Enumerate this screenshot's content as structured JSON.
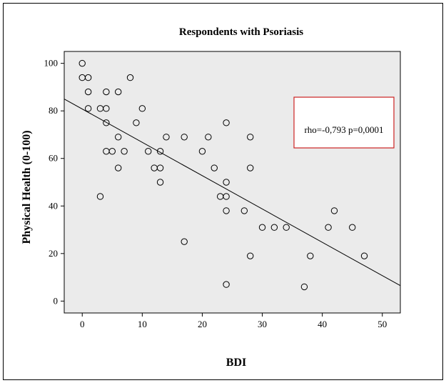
{
  "chart_data": {
    "type": "scatter",
    "title": "Respondents with Psoriasis",
    "xlabel": "BDI",
    "ylabel": "Physical Health (0-100)",
    "xlim": [
      -3,
      53
    ],
    "ylim": [
      -5,
      105
    ],
    "x_ticks": [
      0,
      10,
      20,
      30,
      40,
      50
    ],
    "y_ticks": [
      0,
      20,
      40,
      60,
      80,
      100
    ],
    "grid": false,
    "plot_background": "#ebebeb",
    "point_color": "#000000",
    "points": [
      {
        "x": 0,
        "y": 100
      },
      {
        "x": 0,
        "y": 94
      },
      {
        "x": 1,
        "y": 94
      },
      {
        "x": 1,
        "y": 88
      },
      {
        "x": 1,
        "y": 81
      },
      {
        "x": 3,
        "y": 81
      },
      {
        "x": 4,
        "y": 88
      },
      {
        "x": 4,
        "y": 81
      },
      {
        "x": 4,
        "y": 75
      },
      {
        "x": 4,
        "y": 63
      },
      {
        "x": 5,
        "y": 63
      },
      {
        "x": 3,
        "y": 44
      },
      {
        "x": 6,
        "y": 88
      },
      {
        "x": 6,
        "y": 69
      },
      {
        "x": 6,
        "y": 56
      },
      {
        "x": 7,
        "y": 63
      },
      {
        "x": 8,
        "y": 94
      },
      {
        "x": 9,
        "y": 75
      },
      {
        "x": 10,
        "y": 81
      },
      {
        "x": 11,
        "y": 63
      },
      {
        "x": 12,
        "y": 56
      },
      {
        "x": 13,
        "y": 63
      },
      {
        "x": 13,
        "y": 56
      },
      {
        "x": 13,
        "y": 50
      },
      {
        "x": 14,
        "y": 69
      },
      {
        "x": 17,
        "y": 69
      },
      {
        "x": 17,
        "y": 25
      },
      {
        "x": 20,
        "y": 63
      },
      {
        "x": 21,
        "y": 69
      },
      {
        "x": 22,
        "y": 56
      },
      {
        "x": 23,
        "y": 44
      },
      {
        "x": 24,
        "y": 75
      },
      {
        "x": 24,
        "y": 50
      },
      {
        "x": 24,
        "y": 44
      },
      {
        "x": 24,
        "y": 38
      },
      {
        "x": 24,
        "y": 7
      },
      {
        "x": 27,
        "y": 38
      },
      {
        "x": 28,
        "y": 69
      },
      {
        "x": 28,
        "y": 56
      },
      {
        "x": 28,
        "y": 19
      },
      {
        "x": 30,
        "y": 31
      },
      {
        "x": 32,
        "y": 31
      },
      {
        "x": 34,
        "y": 31
      },
      {
        "x": 37,
        "y": 6
      },
      {
        "x": 38,
        "y": 19
      },
      {
        "x": 41,
        "y": 31
      },
      {
        "x": 42,
        "y": 38
      },
      {
        "x": 45,
        "y": 31
      },
      {
        "x": 47,
        "y": 19
      }
    ],
    "fit_line": {
      "x1": -3,
      "y1": 85,
      "x2": 53,
      "y2": 6.5
    },
    "annotation": {
      "text": "rho=-0,793  p=0,0001",
      "box_color": "#cc2222"
    }
  }
}
